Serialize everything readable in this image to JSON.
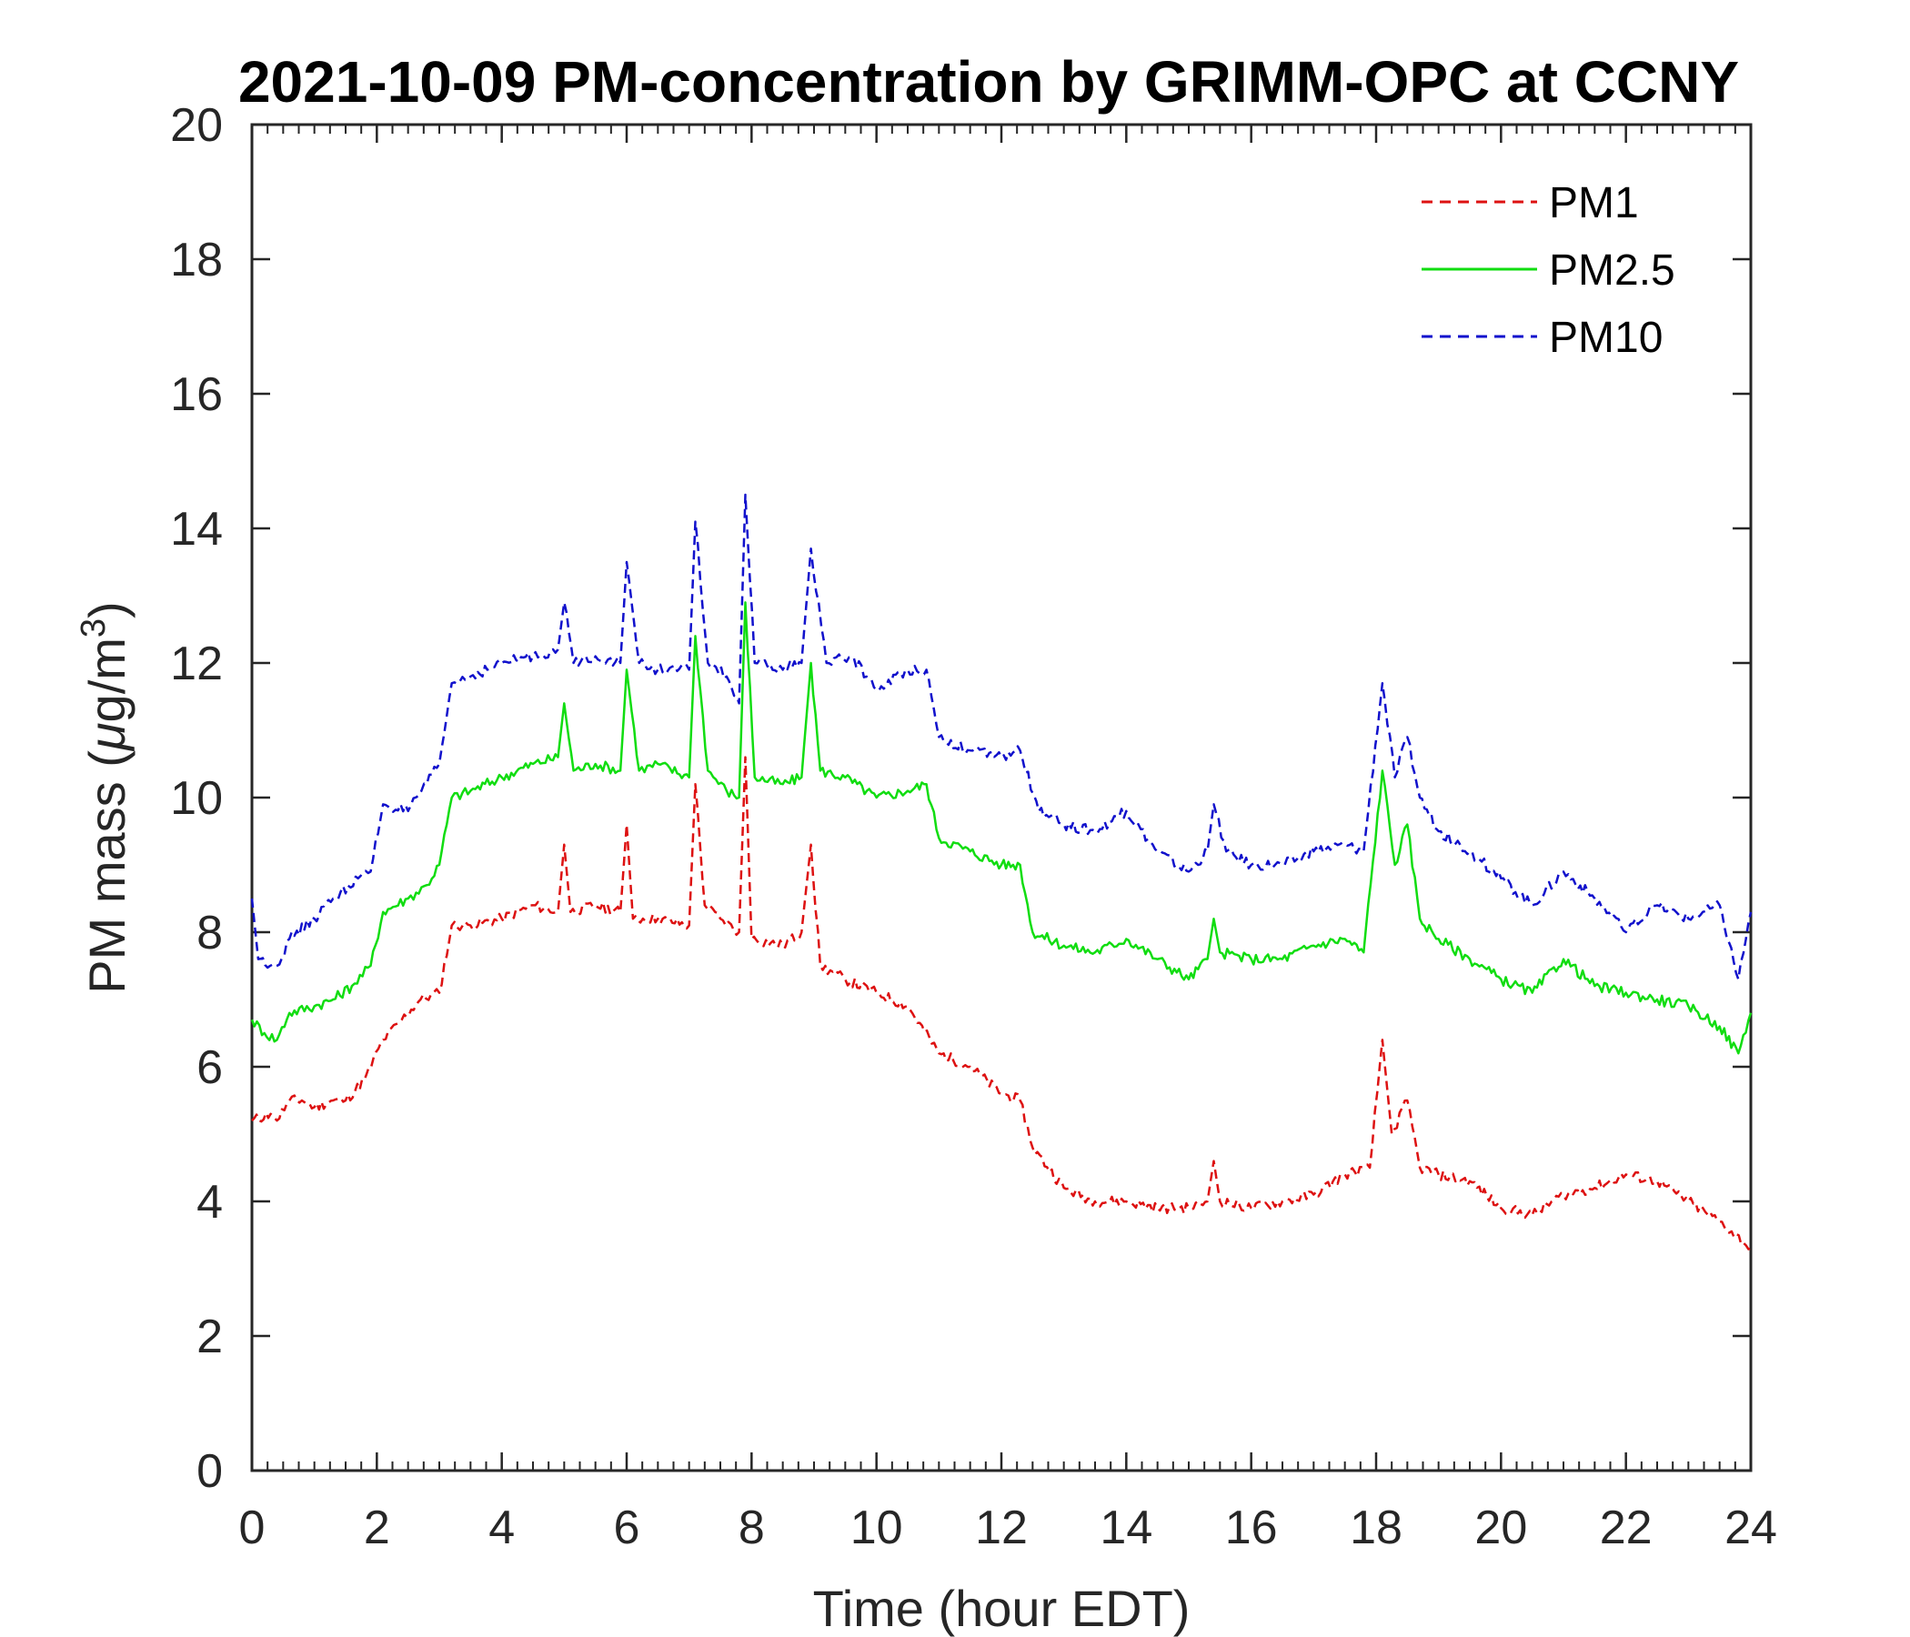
{
  "chart_data": {
    "type": "line",
    "title": "2021-10-09 PM-concentration by GRIMM-OPC at CCNY",
    "xlabel": "Time (hour EDT)",
    "ylabel_prefix": "PM mass (",
    "ylabel_mu": "μ",
    "ylabel_unit": "g/m",
    "ylabel_sup": "3",
    "ylabel_suffix": ")",
    "xlim": [
      0,
      24
    ],
    "ylim": [
      0,
      20
    ],
    "xticks": [
      "0",
      "2",
      "4",
      "6",
      "8",
      "10",
      "12",
      "14",
      "16",
      "18",
      "20",
      "22",
      "24"
    ],
    "yticks": [
      "0",
      "2",
      "4",
      "6",
      "8",
      "10",
      "12",
      "14",
      "16",
      "18",
      "20"
    ],
    "legend_position": "top-right",
    "grid": false,
    "series": [
      {
        "name": "PM1",
        "color": "#dd1111",
        "dash": "dashed",
        "points": [
          [
            0,
            5.2
          ],
          [
            0.3,
            5.3
          ],
          [
            0.4,
            5.2
          ],
          [
            0.6,
            5.5
          ],
          [
            0.8,
            5.5
          ],
          [
            1,
            5.4
          ],
          [
            1.3,
            5.5
          ],
          [
            1.5,
            5.5
          ],
          [
            1.8,
            5.8
          ],
          [
            2.1,
            6.4
          ],
          [
            2.4,
            6.7
          ],
          [
            2.7,
            7.0
          ],
          [
            3.0,
            7.1
          ],
          [
            3.2,
            8.1
          ],
          [
            3.5,
            8.1
          ],
          [
            4.0,
            8.2
          ],
          [
            4.5,
            8.4
          ],
          [
            4.9,
            8.3
          ],
          [
            5.0,
            9.3
          ],
          [
            5.1,
            8.3
          ],
          [
            5.5,
            8.4
          ],
          [
            5.9,
            8.3
          ],
          [
            6.0,
            9.6
          ],
          [
            6.1,
            8.2
          ],
          [
            6.5,
            8.2
          ],
          [
            7.0,
            8.1
          ],
          [
            7.1,
            10.2
          ],
          [
            7.25,
            8.4
          ],
          [
            7.5,
            8.2
          ],
          [
            7.8,
            8.0
          ],
          [
            7.9,
            10.6
          ],
          [
            8.0,
            7.9
          ],
          [
            8.5,
            7.8
          ],
          [
            8.8,
            8.0
          ],
          [
            8.95,
            9.3
          ],
          [
            9.1,
            7.5
          ],
          [
            9.5,
            7.3
          ],
          [
            10,
            7.1
          ],
          [
            10.5,
            6.9
          ],
          [
            11,
            6.2
          ],
          [
            11.5,
            6.0
          ],
          [
            12.0,
            5.6
          ],
          [
            12.3,
            5.5
          ],
          [
            12.5,
            4.8
          ],
          [
            13,
            4.2
          ],
          [
            13.5,
            4.0
          ],
          [
            14,
            4.0
          ],
          [
            14.5,
            3.9
          ],
          [
            15,
            3.9
          ],
          [
            15.3,
            4.0
          ],
          [
            15.4,
            4.6
          ],
          [
            15.5,
            4.0
          ],
          [
            16,
            3.9
          ],
          [
            16.5,
            4.0
          ],
          [
            17,
            4.1
          ],
          [
            17.5,
            4.4
          ],
          [
            17.9,
            4.5
          ],
          [
            18.1,
            6.4
          ],
          [
            18.25,
            5.0
          ],
          [
            18.5,
            5.5
          ],
          [
            18.7,
            4.5
          ],
          [
            19.0,
            4.4
          ],
          [
            19.5,
            4.3
          ],
          [
            20,
            3.9
          ],
          [
            20.5,
            3.8
          ],
          [
            21,
            4.1
          ],
          [
            21.5,
            4.2
          ],
          [
            22,
            4.4
          ],
          [
            22.5,
            4.3
          ],
          [
            23,
            4.0
          ],
          [
            23.5,
            3.7
          ],
          [
            24,
            3.3
          ]
        ]
      },
      {
        "name": "PM2.5",
        "color": "#11dd11",
        "dash": "solid",
        "points": [
          [
            0,
            6.7
          ],
          [
            0.2,
            6.5
          ],
          [
            0.4,
            6.4
          ],
          [
            0.6,
            6.8
          ],
          [
            1,
            6.9
          ],
          [
            1.3,
            7.0
          ],
          [
            1.6,
            7.2
          ],
          [
            1.9,
            7.5
          ],
          [
            2.1,
            8.3
          ],
          [
            2.5,
            8.5
          ],
          [
            2.8,
            8.7
          ],
          [
            3.0,
            9.0
          ],
          [
            3.2,
            10.0
          ],
          [
            3.5,
            10.1
          ],
          [
            4.0,
            10.3
          ],
          [
            4.5,
            10.5
          ],
          [
            4.9,
            10.6
          ],
          [
            5.0,
            11.4
          ],
          [
            5.15,
            10.4
          ],
          [
            5.5,
            10.5
          ],
          [
            5.9,
            10.4
          ],
          [
            6.0,
            11.9
          ],
          [
            6.2,
            10.4
          ],
          [
            6.5,
            10.5
          ],
          [
            7.0,
            10.3
          ],
          [
            7.1,
            12.4
          ],
          [
            7.3,
            10.4
          ],
          [
            7.6,
            10.1
          ],
          [
            7.8,
            10.0
          ],
          [
            7.9,
            12.9
          ],
          [
            8.05,
            10.3
          ],
          [
            8.5,
            10.2
          ],
          [
            8.8,
            10.3
          ],
          [
            8.95,
            12.0
          ],
          [
            9.1,
            10.4
          ],
          [
            9.5,
            10.3
          ],
          [
            10,
            10.0
          ],
          [
            10.5,
            10.1
          ],
          [
            10.8,
            10.2
          ],
          [
            11.0,
            9.4
          ],
          [
            11.5,
            9.2
          ],
          [
            12.0,
            9.0
          ],
          [
            12.3,
            9.0
          ],
          [
            12.5,
            8.0
          ],
          [
            13,
            7.8
          ],
          [
            13.5,
            7.7
          ],
          [
            14,
            7.9
          ],
          [
            14.5,
            7.6
          ],
          [
            15,
            7.3
          ],
          [
            15.3,
            7.6
          ],
          [
            15.4,
            8.2
          ],
          [
            15.5,
            7.7
          ],
          [
            16,
            7.6
          ],
          [
            16.5,
            7.6
          ],
          [
            17,
            7.8
          ],
          [
            17.5,
            7.9
          ],
          [
            17.8,
            7.7
          ],
          [
            18.1,
            10.4
          ],
          [
            18.3,
            9.0
          ],
          [
            18.5,
            9.6
          ],
          [
            18.7,
            8.2
          ],
          [
            19.0,
            7.9
          ],
          [
            19.5,
            7.6
          ],
          [
            20,
            7.3
          ],
          [
            20.5,
            7.1
          ],
          [
            21,
            7.6
          ],
          [
            21.5,
            7.2
          ],
          [
            22,
            7.1
          ],
          [
            22.5,
            7.0
          ],
          [
            23,
            6.9
          ],
          [
            23.5,
            6.6
          ],
          [
            23.8,
            6.2
          ],
          [
            24,
            6.8
          ]
        ]
      },
      {
        "name": "PM10",
        "color": "#1111cc",
        "dash": "dashed",
        "points": [
          [
            0,
            8.5
          ],
          [
            0.1,
            7.6
          ],
          [
            0.4,
            7.5
          ],
          [
            0.6,
            7.9
          ],
          [
            1,
            8.2
          ],
          [
            1.3,
            8.5
          ],
          [
            1.7,
            8.8
          ],
          [
            1.9,
            8.9
          ],
          [
            2.1,
            9.9
          ],
          [
            2.5,
            9.8
          ],
          [
            2.8,
            10.2
          ],
          [
            3.0,
            10.5
          ],
          [
            3.2,
            11.7
          ],
          [
            3.5,
            11.8
          ],
          [
            4.0,
            12.0
          ],
          [
            4.5,
            12.1
          ],
          [
            4.9,
            12.2
          ],
          [
            5.0,
            12.9
          ],
          [
            5.15,
            12.0
          ],
          [
            5.5,
            12.1
          ],
          [
            5.9,
            12.0
          ],
          [
            6.0,
            13.5
          ],
          [
            6.2,
            12.0
          ],
          [
            6.5,
            11.9
          ],
          [
            7.0,
            11.9
          ],
          [
            7.1,
            14.1
          ],
          [
            7.3,
            12.0
          ],
          [
            7.6,
            11.8
          ],
          [
            7.8,
            11.4
          ],
          [
            7.9,
            14.5
          ],
          [
            8.05,
            12.0
          ],
          [
            8.5,
            11.9
          ],
          [
            8.8,
            12.0
          ],
          [
            8.95,
            13.7
          ],
          [
            9.2,
            12.0
          ],
          [
            9.6,
            12.1
          ],
          [
            10,
            11.6
          ],
          [
            10.5,
            11.9
          ],
          [
            10.8,
            11.9
          ],
          [
            11.0,
            10.9
          ],
          [
            11.5,
            10.7
          ],
          [
            12.0,
            10.6
          ],
          [
            12.3,
            10.7
          ],
          [
            12.6,
            9.8
          ],
          [
            13,
            9.6
          ],
          [
            13.5,
            9.5
          ],
          [
            14,
            9.8
          ],
          [
            14.5,
            9.2
          ],
          [
            15,
            8.9
          ],
          [
            15.3,
            9.2
          ],
          [
            15.4,
            9.9
          ],
          [
            15.6,
            9.2
          ],
          [
            16,
            9.0
          ],
          [
            16.5,
            9.0
          ],
          [
            17,
            9.2
          ],
          [
            17.5,
            9.3
          ],
          [
            17.8,
            9.2
          ],
          [
            18.1,
            11.7
          ],
          [
            18.3,
            10.3
          ],
          [
            18.5,
            10.9
          ],
          [
            18.7,
            10.0
          ],
          [
            19.0,
            9.5
          ],
          [
            19.5,
            9.2
          ],
          [
            20,
            8.8
          ],
          [
            20.5,
            8.4
          ],
          [
            21,
            8.9
          ],
          [
            21.5,
            8.5
          ],
          [
            22,
            8.0
          ],
          [
            22.5,
            8.4
          ],
          [
            23,
            8.2
          ],
          [
            23.5,
            8.4
          ],
          [
            23.8,
            7.3
          ],
          [
            24,
            8.3
          ]
        ]
      }
    ]
  }
}
